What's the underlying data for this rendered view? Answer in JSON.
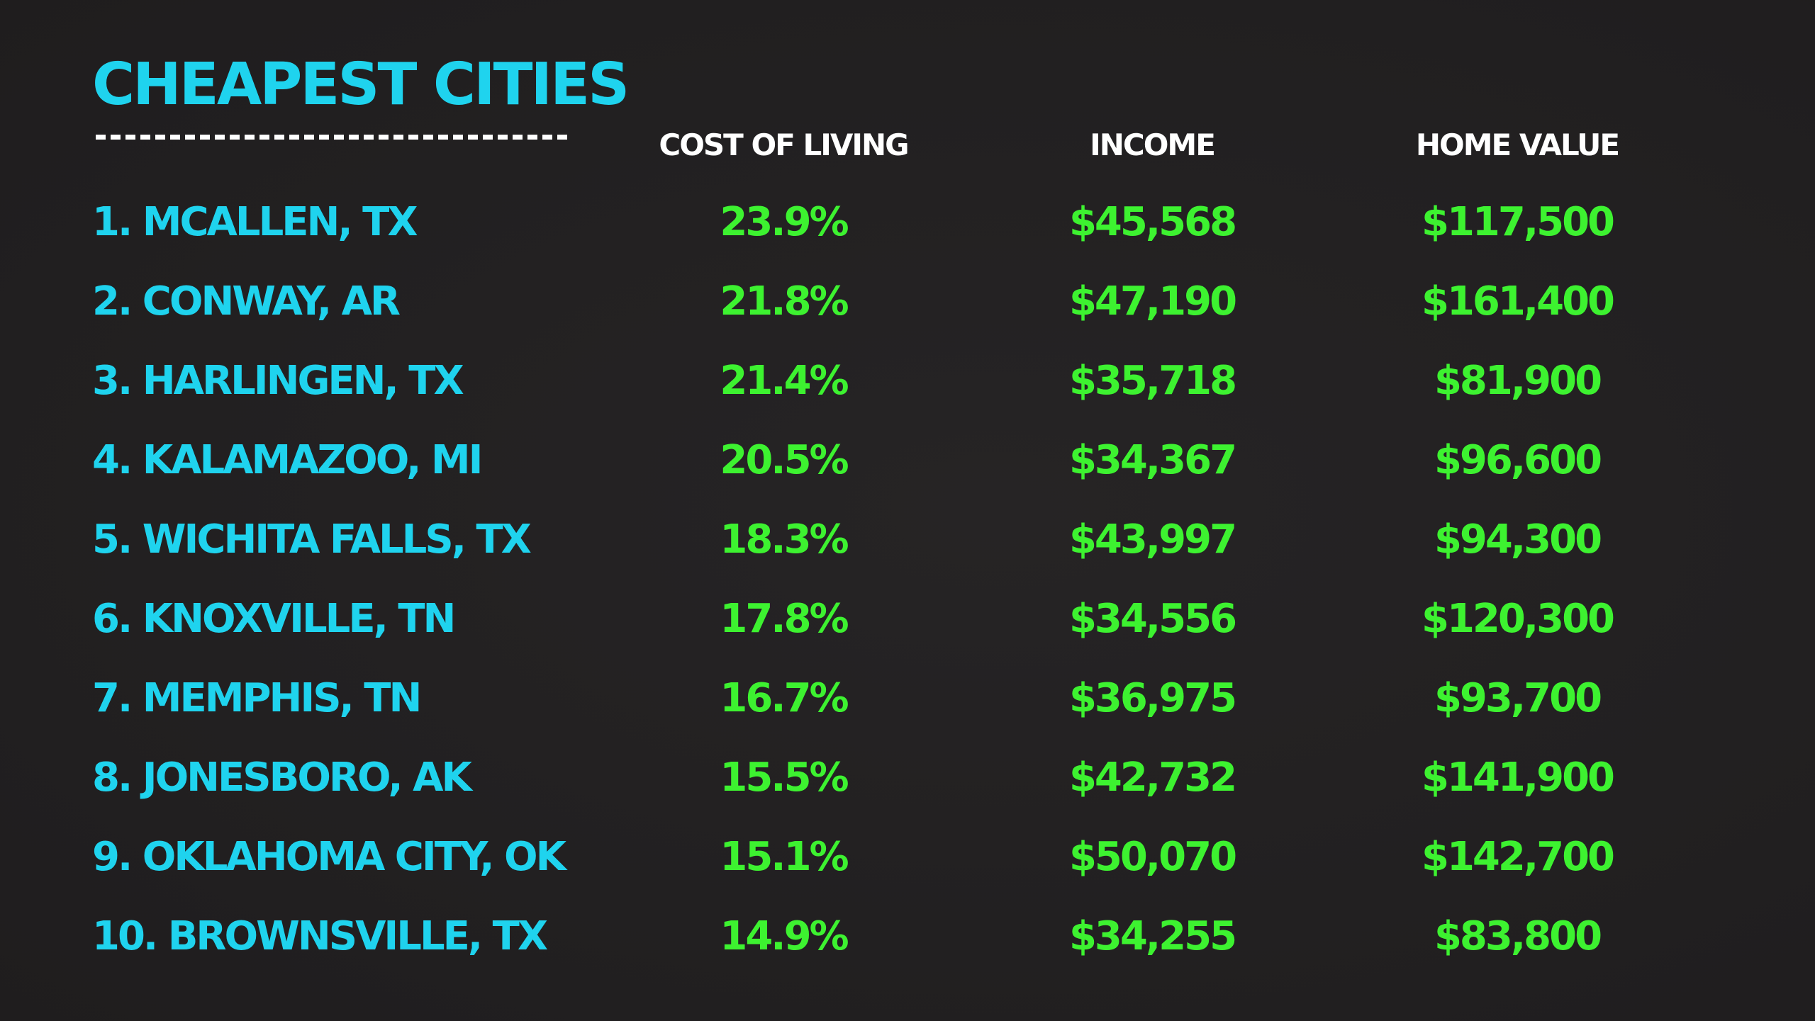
{
  "title": "CHEAPEST CITIES",
  "headers": {
    "cost_of_living": "COST OF LIVING",
    "income": "INCOME",
    "home_value": "HOME VALUE"
  },
  "colors": {
    "background": "#232122",
    "city_text": "#1fd3ee",
    "value_text": "#3df230",
    "header_text": "#ffffff"
  },
  "rows": [
    {
      "city": "1. MCALLEN, TX",
      "cost": "23.9%",
      "income": "$45,568",
      "home": "$117,500"
    },
    {
      "city": "2. CONWAY, AR",
      "cost": "21.8%",
      "income": "$47,190",
      "home": "$161,400"
    },
    {
      "city": "3. HARLINGEN, TX",
      "cost": "21.4%",
      "income": "$35,718",
      "home": "$81,900"
    },
    {
      "city": "4. KALAMAZOO, MI",
      "cost": "20.5%",
      "income": "$34,367",
      "home": "$96,600"
    },
    {
      "city": "5. WICHITA FALLS, TX",
      "cost": "18.3%",
      "income": "$43,997",
      "home": "$94,300"
    },
    {
      "city": "6. KNOXVILLE, TN",
      "cost": "17.8%",
      "income": "$34,556",
      "home": "$120,300"
    },
    {
      "city": "7. MEMPHIS, TN",
      "cost": "16.7%",
      "income": "$36,975",
      "home": "$93,700"
    },
    {
      "city": "8. JONESBORO, AK",
      "cost": "15.5%",
      "income": "$42,732",
      "home": "$141,900"
    },
    {
      "city": "9. OKLAHOMA CITY, OK",
      "cost": "15.1%",
      "income": "$50,070",
      "home": "$142,700"
    },
    {
      "city": "10. BROWNSVILLE, TX",
      "cost": "14.9%",
      "income": "$34,255",
      "home": "$83,800"
    }
  ]
}
